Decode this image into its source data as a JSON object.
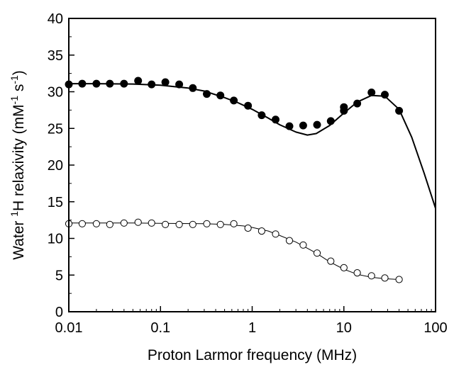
{
  "chart_data": {
    "type": "scatter",
    "title": "",
    "xlabel": "Proton Larmor frequency (MHz)",
    "ylabel": {
      "part1": "Water ",
      "sup1": "1",
      "part2": "H relaxivity (mM",
      "sup2": "-1",
      "part3": " s",
      "sup3": "-1",
      "part4": ")"
    },
    "x_scale": "log",
    "xlim": [
      0.01,
      100
    ],
    "ylim": [
      0,
      40
    ],
    "x_ticks": [
      {
        "value": 0.01,
        "label": "0.01"
      },
      {
        "value": 0.1,
        "label": "0.1"
      },
      {
        "value": 1,
        "label": "1"
      },
      {
        "value": 10,
        "label": "10"
      },
      {
        "value": 100,
        "label": "100"
      }
    ],
    "y_ticks": [
      {
        "value": 0,
        "label": "0"
      },
      {
        "value": 5,
        "label": "5"
      },
      {
        "value": 10,
        "label": "10"
      },
      {
        "value": 15,
        "label": "15"
      },
      {
        "value": 20,
        "label": "20"
      },
      {
        "value": 25,
        "label": "25"
      },
      {
        "value": 30,
        "label": "30"
      },
      {
        "value": 35,
        "label": "35"
      },
      {
        "value": 40,
        "label": "40"
      }
    ],
    "grid": false,
    "legend": "none",
    "series": [
      {
        "marker": "filled-circle",
        "color": "#000000",
        "points": [
          [
            0.01,
            31.0
          ],
          [
            0.014,
            31.1
          ],
          [
            0.02,
            31.1
          ],
          [
            0.028,
            31.1
          ],
          [
            0.04,
            31.1
          ],
          [
            0.057,
            31.5
          ],
          [
            0.08,
            31.0
          ],
          [
            0.113,
            31.3
          ],
          [
            0.16,
            31.0
          ],
          [
            0.225,
            30.5
          ],
          [
            0.32,
            29.7
          ],
          [
            0.45,
            29.5
          ],
          [
            0.63,
            28.8
          ],
          [
            0.9,
            28.1
          ],
          [
            1.27,
            26.8
          ],
          [
            1.8,
            26.2
          ],
          [
            2.55,
            25.3
          ],
          [
            3.6,
            25.4
          ],
          [
            5.1,
            25.5
          ],
          [
            7.2,
            26.0
          ],
          [
            10,
            27.4
          ],
          [
            10,
            27.9
          ],
          [
            14,
            28.4
          ],
          [
            20,
            29.9
          ],
          [
            28,
            29.6
          ],
          [
            40,
            27.4
          ]
        ],
        "fit": [
          [
            0.01,
            31.1
          ],
          [
            0.02,
            31.1
          ],
          [
            0.05,
            31.05
          ],
          [
            0.1,
            30.9
          ],
          [
            0.2,
            30.5
          ],
          [
            0.3,
            30.1
          ],
          [
            0.5,
            29.2
          ],
          [
            0.7,
            28.5
          ],
          [
            1,
            27.6
          ],
          [
            1.5,
            26.4
          ],
          [
            2,
            25.5
          ],
          [
            3,
            24.5
          ],
          [
            4,
            24.1
          ],
          [
            5,
            24.3
          ],
          [
            7,
            25.4
          ],
          [
            10,
            27.1
          ],
          [
            14,
            28.6
          ],
          [
            20,
            29.5
          ],
          [
            28,
            29.4
          ],
          [
            40,
            27.6
          ],
          [
            55,
            23.8
          ],
          [
            75,
            18.9
          ],
          [
            100,
            14.1
          ]
        ]
      },
      {
        "marker": "open-circle",
        "color": "#000000",
        "points": [
          [
            0.01,
            12.0
          ],
          [
            0.014,
            12.0
          ],
          [
            0.02,
            12.0
          ],
          [
            0.028,
            11.9
          ],
          [
            0.04,
            12.1
          ],
          [
            0.057,
            12.2
          ],
          [
            0.08,
            12.1
          ],
          [
            0.113,
            11.9
          ],
          [
            0.16,
            11.9
          ],
          [
            0.225,
            11.9
          ],
          [
            0.32,
            12.0
          ],
          [
            0.45,
            11.9
          ],
          [
            0.63,
            12.0
          ],
          [
            0.9,
            11.4
          ],
          [
            1.27,
            11.0
          ],
          [
            1.8,
            10.6
          ],
          [
            2.55,
            9.7
          ],
          [
            3.6,
            9.1
          ],
          [
            5.1,
            8.0
          ],
          [
            7.2,
            6.9
          ],
          [
            10,
            6.0
          ],
          [
            14,
            5.3
          ],
          [
            20,
            4.9
          ],
          [
            28,
            4.6
          ],
          [
            40,
            4.4
          ]
        ],
        "fit": [
          [
            0.01,
            12.1
          ],
          [
            0.05,
            12.1
          ],
          [
            0.1,
            12.05
          ],
          [
            0.3,
            12.0
          ],
          [
            0.5,
            11.9
          ],
          [
            0.8,
            11.7
          ],
          [
            1,
            11.5
          ],
          [
            1.5,
            11.0
          ],
          [
            2,
            10.4
          ],
          [
            3,
            9.5
          ],
          [
            5,
            8.0
          ],
          [
            7,
            6.8
          ],
          [
            10,
            5.8
          ],
          [
            14,
            5.1
          ],
          [
            20,
            4.7
          ],
          [
            28,
            4.5
          ],
          [
            40,
            4.4
          ]
        ]
      }
    ]
  }
}
